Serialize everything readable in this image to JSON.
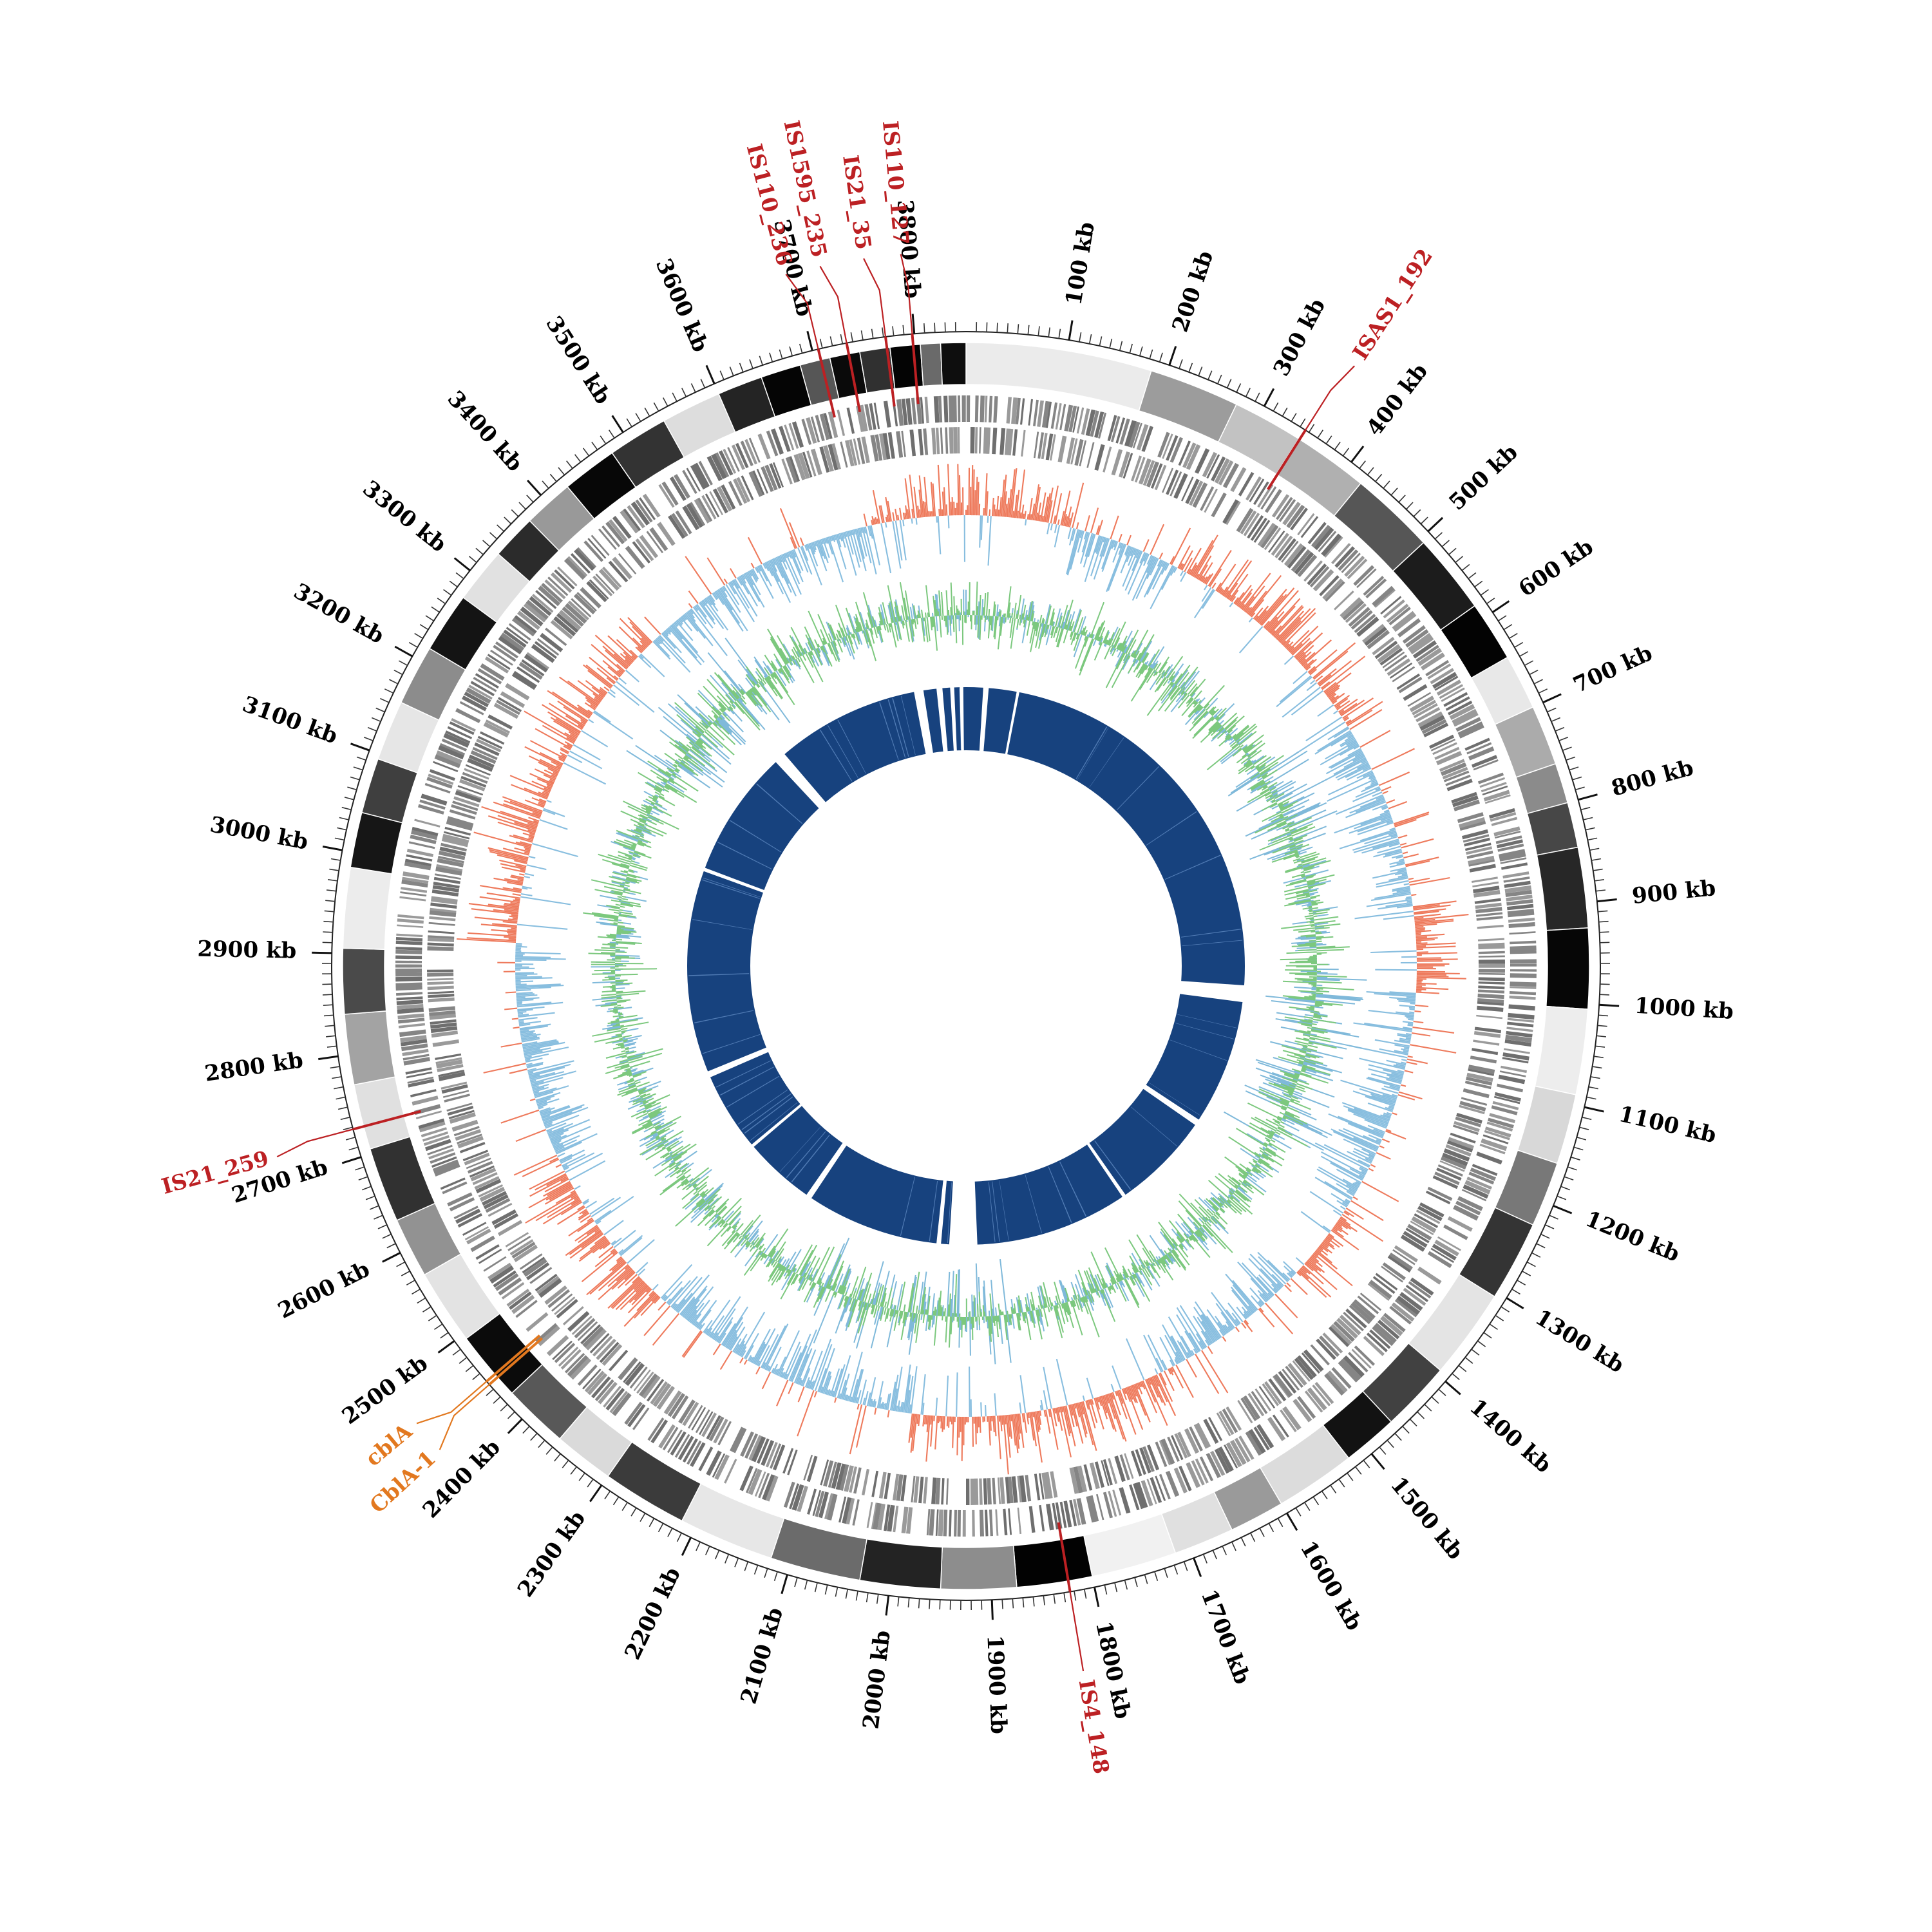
{
  "chart_data": {
    "type": "circular_genome",
    "title": "",
    "genome_length_kb": 3850,
    "ticks": {
      "interval_kb": 100,
      "minor_interval_kb": 10,
      "labels": [
        "100 kb",
        "200 kb",
        "300 kb",
        "400 kb",
        "500 kb",
        "600 kb",
        "700 kb",
        "800 kb",
        "900 kb",
        "1000 kb",
        "1100 kb",
        "1200 kb",
        "1300 kb",
        "1400 kb",
        "1500 kb",
        "1600 kb",
        "1700 kb",
        "1800 kb",
        "1900 kb",
        "2000 kb",
        "2100 kb",
        "2200 kb",
        "2300 kb",
        "2400 kb",
        "2500 kb",
        "2600 kb",
        "2700 kb",
        "2800 kb",
        "2900 kb",
        "3000 kb",
        "3100 kb",
        "3200 kb",
        "3300 kb",
        "3400 kb",
        "3500 kb",
        "3600 kb",
        "3700 kb",
        "3800 kb"
      ]
    },
    "rings": {
      "contigs": {
        "segments": [
          {
            "s": 0,
            "e": 185,
            "fill": "#ebebeb"
          },
          {
            "s": 185,
            "e": 275,
            "fill": "#9c9c9c"
          },
          {
            "s": 275,
            "e": 345,
            "fill": "#c2c2c2"
          },
          {
            "s": 345,
            "e": 420,
            "fill": "#b0b0b0"
          },
          {
            "s": 420,
            "e": 505,
            "fill": "#565656"
          },
          {
            "s": 505,
            "e": 585,
            "fill": "#1c1c1c"
          },
          {
            "s": 585,
            "e": 645,
            "fill": "#030303"
          },
          {
            "s": 645,
            "e": 700,
            "fill": "#e8e8e8"
          },
          {
            "s": 700,
            "e": 760,
            "fill": "#ababab"
          },
          {
            "s": 760,
            "e": 800,
            "fill": "#8b8b8b"
          },
          {
            "s": 800,
            "e": 845,
            "fill": "#474747"
          },
          {
            "s": 845,
            "e": 925,
            "fill": "#272727"
          },
          {
            "s": 925,
            "e": 1005,
            "fill": "#060606"
          },
          {
            "s": 1005,
            "e": 1090,
            "fill": "#ededed"
          },
          {
            "s": 1090,
            "e": 1160,
            "fill": "#d8d8d8"
          },
          {
            "s": 1160,
            "e": 1225,
            "fill": "#787878"
          },
          {
            "s": 1225,
            "e": 1305,
            "fill": "#343434"
          },
          {
            "s": 1305,
            "e": 1395,
            "fill": "#e4e4e4"
          },
          {
            "s": 1395,
            "e": 1465,
            "fill": "#414141"
          },
          {
            "s": 1465,
            "e": 1520,
            "fill": "#121212"
          },
          {
            "s": 1520,
            "e": 1600,
            "fill": "#dcdcdc"
          },
          {
            "s": 1600,
            "e": 1655,
            "fill": "#9a9a9a"
          },
          {
            "s": 1655,
            "e": 1715,
            "fill": "#e0e0e0"
          },
          {
            "s": 1715,
            "e": 1800,
            "fill": "#f1f1f1"
          },
          {
            "s": 1800,
            "e": 1875,
            "fill": "#020202"
          },
          {
            "s": 1875,
            "e": 1950,
            "fill": "#8d8d8d"
          },
          {
            "s": 1950,
            "e": 2030,
            "fill": "#232323"
          },
          {
            "s": 2030,
            "e": 2120,
            "fill": "#6b6b6b"
          },
          {
            "s": 2120,
            "e": 2215,
            "fill": "#e7e7e7"
          },
          {
            "s": 2215,
            "e": 2300,
            "fill": "#3b3b3b"
          },
          {
            "s": 2300,
            "e": 2360,
            "fill": "#dadada"
          },
          {
            "s": 2360,
            "e": 2425,
            "fill": "#585858"
          },
          {
            "s": 2425,
            "e": 2495,
            "fill": "#0b0b0b"
          },
          {
            "s": 2495,
            "e": 2570,
            "fill": "#e3e3e3"
          },
          {
            "s": 2570,
            "e": 2630,
            "fill": "#929292"
          },
          {
            "s": 2630,
            "e": 2705,
            "fill": "#313131"
          },
          {
            "s": 2705,
            "e": 2770,
            "fill": "#e0e0e0"
          },
          {
            "s": 2770,
            "e": 2840,
            "fill": "#a3a3a3"
          },
          {
            "s": 2840,
            "e": 2905,
            "fill": "#4a4a4a"
          },
          {
            "s": 2905,
            "e": 2985,
            "fill": "#ececec"
          },
          {
            "s": 2985,
            "e": 3040,
            "fill": "#161616"
          },
          {
            "s": 3040,
            "e": 3095,
            "fill": "#3f3f3f"
          },
          {
            "s": 3095,
            "e": 3155,
            "fill": "#e6e6e6"
          },
          {
            "s": 3155,
            "e": 3215,
            "fill": "#8c8c8c"
          },
          {
            "s": 3215,
            "e": 3275,
            "fill": "#141414"
          },
          {
            "s": 3275,
            "e": 3330,
            "fill": "#e1e1e1"
          },
          {
            "s": 3330,
            "e": 3375,
            "fill": "#2b2b2b"
          },
          {
            "s": 3375,
            "e": 3425,
            "fill": "#999999"
          },
          {
            "s": 3425,
            "e": 3480,
            "fill": "#070707"
          },
          {
            "s": 3480,
            "e": 3540,
            "fill": "#333333"
          },
          {
            "s": 3540,
            "e": 3600,
            "fill": "#dddddd"
          },
          {
            "s": 3600,
            "e": 3645,
            "fill": "#242424"
          },
          {
            "s": 3645,
            "e": 3685,
            "fill": "#050505"
          },
          {
            "s": 3685,
            "e": 3715,
            "fill": "#565656"
          },
          {
            "s": 3715,
            "e": 3745,
            "fill": "#0a0a0a"
          },
          {
            "s": 3745,
            "e": 3775,
            "fill": "#303030"
          },
          {
            "s": 3775,
            "e": 3805,
            "fill": "#040404"
          },
          {
            "s": 3805,
            "e": 3825,
            "fill": "#6a6a6a"
          },
          {
            "s": 3825,
            "e": 3850,
            "fill": "#0e0e0e"
          }
        ]
      },
      "genes": {
        "rows": 2,
        "seed": 11,
        "window_kb": 5,
        "density": 0.78,
        "shades": [
          "#9a9a9a",
          "#858585",
          "#6f6f6f"
        ]
      },
      "gc_content": {
        "pos_color": "#ee7a5c",
        "neg_color": "#88bedf",
        "seed": 23,
        "step_kb": 2,
        "pos_regions": [
          [
            3720,
            150
          ],
          [
            300,
            620
          ],
          [
            880,
            1000
          ],
          [
            1310,
            1420
          ],
          [
            1650,
            2000
          ],
          [
            2380,
            2600
          ],
          [
            2920,
            3380
          ]
        ]
      },
      "gc_skew": {
        "green_color": "#7cc87e",
        "blue_color": "#7fb9da",
        "seed": 37,
        "step_kb": 2,
        "blue_boost_regions": [
          [
            600,
            760
          ],
          [
            980,
            1280
          ],
          [
            1850,
            2180
          ],
          [
            3230,
            3470
          ]
        ]
      },
      "core": {
        "color": "#17427e",
        "slit_color": "#5b85bd",
        "seed": 51,
        "gaps": [
          [
            38,
            50
          ],
          [
            112,
            118
          ],
          [
            1005,
            1042
          ],
          [
            1320,
            1334
          ],
          [
            1552,
            1560
          ],
          [
            1900,
            1962
          ],
          [
            1980,
            1990
          ],
          [
            2285,
            2298
          ],
          [
            2455,
            2462
          ],
          [
            2636,
            2650
          ],
          [
            3100,
            3108
          ],
          [
            3390,
            3416
          ],
          [
            3735,
            3756
          ],
          [
            3785,
            3798
          ],
          [
            3815,
            3824
          ],
          [
            3836,
            3844
          ]
        ]
      }
    },
    "annotations": [
      {
        "label": "IS110_236",
        "kb": 3706,
        "label_kb": 3694,
        "color": "#bc2023"
      },
      {
        "label": "IS1595_235",
        "kb": 3734,
        "label_kb": 3724,
        "color": "#bc2023"
      },
      {
        "label": "IS21_35",
        "kb": 3772,
        "label_kb": 3762,
        "color": "#bc2023"
      },
      {
        "label": "IS110_127",
        "kb": 3798,
        "label_kb": 3794,
        "color": "#bc2023"
      },
      {
        "label": "ISAS1_192",
        "kb": 346,
        "label_kb": 352,
        "color": "#bc2023"
      },
      {
        "label": "IS4_148",
        "kb": 1824,
        "label_kb": 1824,
        "color": "#bc2023"
      },
      {
        "label": "IS21_259",
        "kb": 2728,
        "label_kb": 2722,
        "color": "#bc2023"
      },
      {
        "label": "CblA-1",
        "kb": 2446,
        "label_kb": 2432,
        "color": "#e2781f"
      },
      {
        "label": "cblA",
        "kb": 2450,
        "label_kb": 2462,
        "color": "#e2781f"
      }
    ]
  }
}
